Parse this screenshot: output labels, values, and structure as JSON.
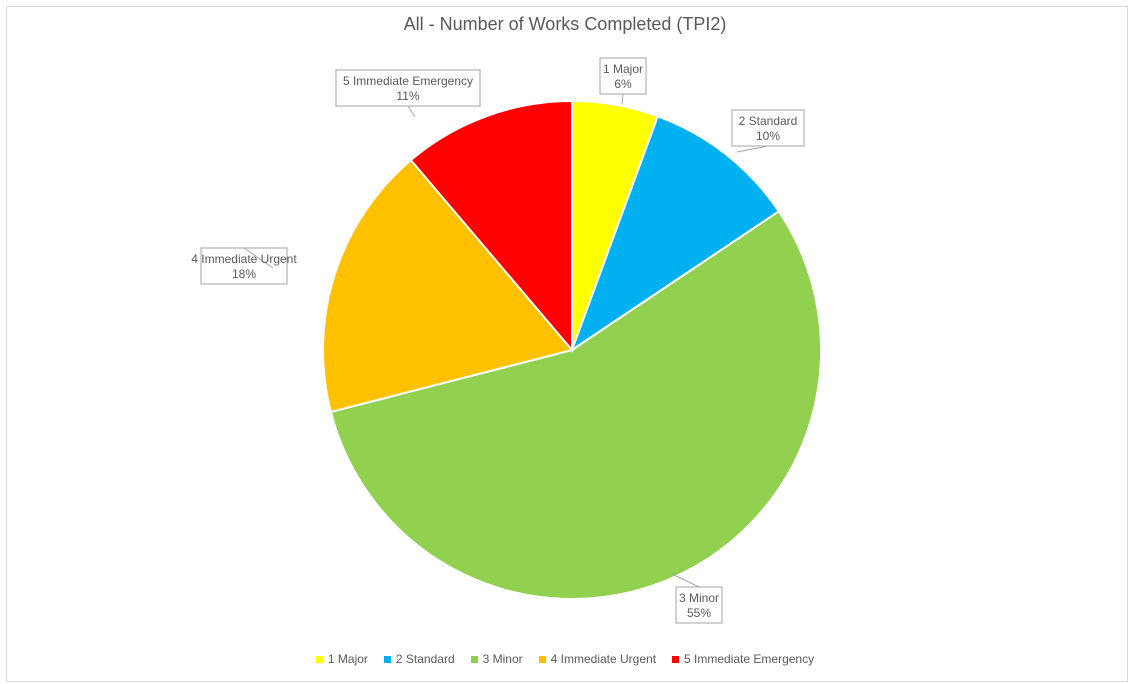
{
  "chart_data": {
    "type": "pie",
    "title": "All - Number of Works Completed (TPI2)",
    "slices": [
      {
        "label": "1 Major",
        "percent_label": "6%",
        "value": 5.6,
        "color": "#ffff00"
      },
      {
        "label": "2 Standard",
        "percent_label": "10%",
        "value": 10.0,
        "color": "#00b0f0"
      },
      {
        "label": "3 Minor",
        "percent_label": "55%",
        "value": 55.4,
        "color": "#92d050"
      },
      {
        "label": "4 Immediate Urgent",
        "percent_label": "18%",
        "value": 17.8,
        "color": "#ffc000"
      },
      {
        "label": "5 Immediate Emergency",
        "percent_label": "11%",
        "value": 11.2,
        "color": "#ff0000"
      }
    ],
    "legend_position": "bottom"
  }
}
